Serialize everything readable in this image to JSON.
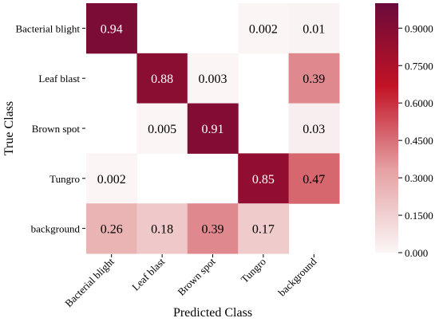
{
  "chart_data": {
    "type": "heatmap",
    "xlabel": "Predicted  Class",
    "ylabel": "True Class",
    "x_categories": [
      "Bacterial blight",
      "Leaf blast",
      "Brown spot",
      "Tungro",
      "background"
    ],
    "y_categories": [
      "Bacterial blight",
      "Leaf blast",
      "Brown spot",
      "Tungro",
      "background"
    ],
    "values": [
      [
        0.94,
        null,
        null,
        0.002,
        0.01
      ],
      [
        null,
        0.88,
        0.003,
        null,
        0.39
      ],
      [
        null,
        0.005,
        0.91,
        null,
        0.03
      ],
      [
        0.002,
        null,
        null,
        0.85,
        0.47
      ],
      [
        0.26,
        0.18,
        0.39,
        0.17,
        null
      ]
    ],
    "cell_labels": [
      [
        "0.94",
        "",
        "",
        "0.002",
        "0.01"
      ],
      [
        "",
        "0.88",
        "0.003",
        "",
        "0.39"
      ],
      [
        "",
        "0.005",
        "0.91",
        "",
        "0.03"
      ],
      [
        "0.002",
        "",
        "",
        "0.85",
        "0.47"
      ],
      [
        "0.26",
        "0.18",
        "0.39",
        "0.17",
        ""
      ]
    ],
    "colorbar": {
      "range": [
        0,
        1
      ],
      "ticks": [
        0.0,
        0.15,
        0.3,
        0.45,
        0.6,
        0.75,
        0.9
      ],
      "tick_labels": [
        "0.000",
        "0.1500",
        "0.3000",
        "0.4500",
        "0.6000",
        "0.7500",
        "0.9000"
      ]
    },
    "colormap": [
      "#fbf6f6",
      "#e5a1a3",
      "#c21325",
      "#6b0a3a"
    ]
  }
}
